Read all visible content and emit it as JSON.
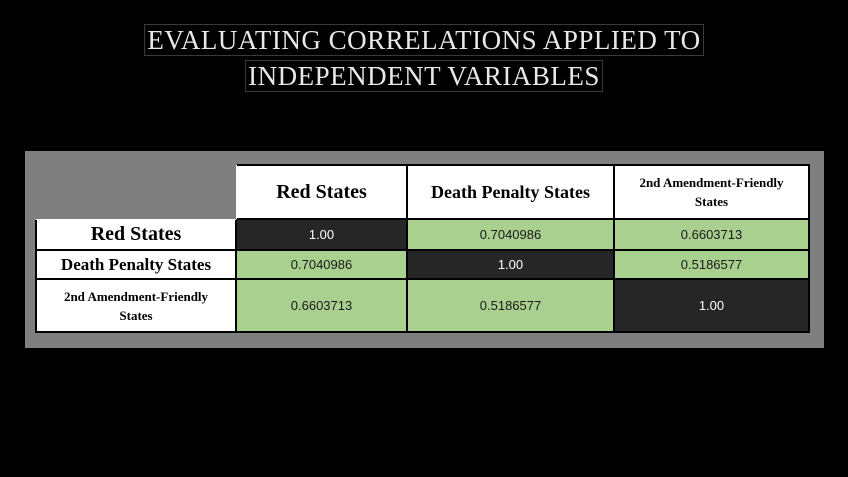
{
  "slide": {
    "title_line_1": "EVALUATING CORRELATIONS APPLIED TO",
    "title_line_2": "INDEPENDENT VARIABLES"
  },
  "matrix": {
    "columns": [
      "Red States",
      "Death Penalty States",
      "2nd Amendment-Friendly States"
    ],
    "rows": [
      {
        "label": "Red States",
        "values": [
          "1.00",
          "0.7040986",
          "0.6603713"
        ]
      },
      {
        "label": "Death Penalty States",
        "values": [
          "0.7040986",
          "1.00",
          "0.5186577"
        ]
      },
      {
        "label": "2nd Amendment-Friendly States",
        "values": [
          "0.6603713",
          "0.5186577",
          "1.00"
        ]
      }
    ]
  },
  "colors": {
    "background": "#000000",
    "panel": "#7f7f7f",
    "diagonal_cell": "#262626",
    "off_diagonal_cell": "#a9d08e",
    "header_cell": "#ffffff"
  }
}
